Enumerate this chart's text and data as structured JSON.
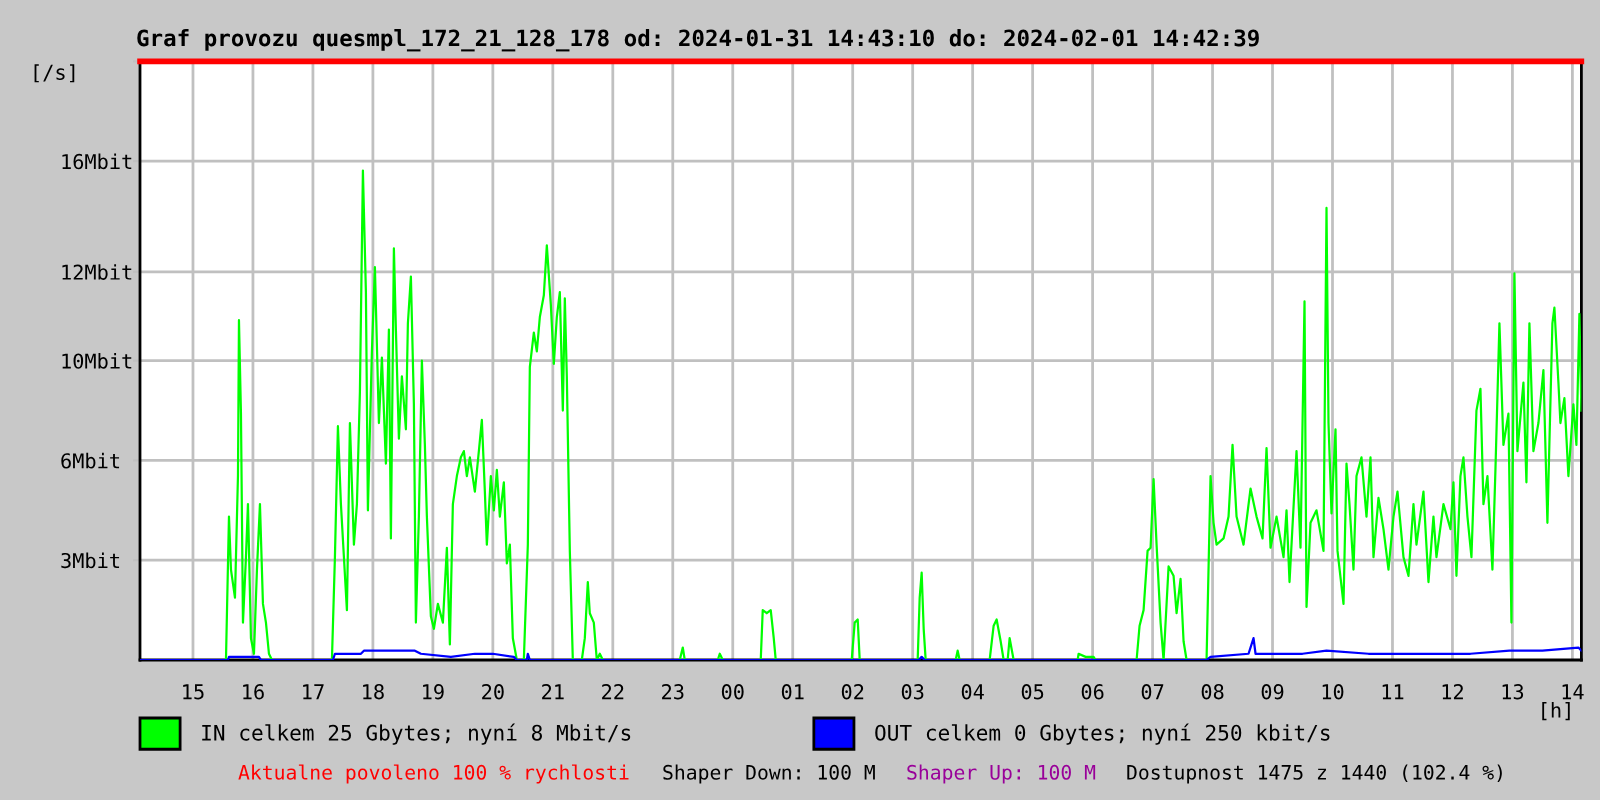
{
  "chart_data": {
    "type": "line",
    "title": "Graf provozu quesmpl_172_21_128_178 od: 2024-01-31 14:43:10 do: 2024-02-01 14:42:39",
    "xlabel": "[h]",
    "ylabel": "[/s]",
    "xlim": [
      "2024-01-31T14:07",
      "2024-02-01T14:09"
    ],
    "xticks": [
      {
        "value": "2024-01-31T15:00",
        "label": "15"
      },
      {
        "value": "2024-01-31T16:00",
        "label": "16"
      },
      {
        "value": "2024-01-31T17:00",
        "label": "17"
      },
      {
        "value": "2024-01-31T18:00",
        "label": "18"
      },
      {
        "value": "2024-01-31T19:00",
        "label": "19"
      },
      {
        "value": "2024-01-31T20:00",
        "label": "20"
      },
      {
        "value": "2024-01-31T21:00",
        "label": "21"
      },
      {
        "value": "2024-01-31T22:00",
        "label": "22"
      },
      {
        "value": "2024-01-31T23:00",
        "label": "23"
      },
      {
        "value": "2024-02-01T00:00",
        "label": "00"
      },
      {
        "value": "2024-02-01T01:00",
        "label": "01"
      },
      {
        "value": "2024-02-01T02:00",
        "label": "02"
      },
      {
        "value": "2024-02-01T03:00",
        "label": "03"
      },
      {
        "value": "2024-02-01T04:00",
        "label": "04"
      },
      {
        "value": "2024-02-01T05:00",
        "label": "05"
      },
      {
        "value": "2024-02-01T06:00",
        "label": "06"
      },
      {
        "value": "2024-02-01T07:00",
        "label": "07"
      },
      {
        "value": "2024-02-01T08:00",
        "label": "08"
      },
      {
        "value": "2024-02-01T09:00",
        "label": "09"
      },
      {
        "value": "2024-02-01T10:00",
        "label": "10"
      },
      {
        "value": "2024-02-01T11:00",
        "label": "11"
      },
      {
        "value": "2024-02-01T12:00",
        "label": "12"
      },
      {
        "value": "2024-02-01T13:00",
        "label": "13"
      },
      {
        "value": "2024-02-01T14:00",
        "label": "14"
      }
    ],
    "ylim": [
      0,
      19.2
    ],
    "yticks": [
      {
        "value": 3.2,
        "label": "3Mbit"
      },
      {
        "value": 6.4,
        "label": "6Mbit"
      },
      {
        "value": 9.6,
        "label": "10Mbit"
      },
      {
        "value": 12.45,
        "label": "12Mbit"
      },
      {
        "value": 16,
        "label": "16Mbit"
      },
      {
        "value": 19.2,
        "label": null
      }
    ],
    "grid": true,
    "legend": "bottom",
    "ref_lines": [
      {
        "axis": "y",
        "value": 19.2,
        "color": "#ff0000"
      }
    ],
    "series": [
      {
        "name": "IN celkem 25 Gbytes; nyní 8 Mbit/s",
        "color": "#00ff00",
        "x": [
          "2024-01-31T14:07",
          "2024-01-31T15:33",
          "2024-01-31T15:36",
          "2024-01-31T15:38",
          "2024-01-31T15:42",
          "2024-01-31T15:45",
          "2024-01-31T15:46",
          "2024-01-31T15:48",
          "2024-01-31T15:50",
          "2024-01-31T15:53",
          "2024-01-31T15:55",
          "2024-01-31T15:58",
          "2024-01-31T16:01",
          "2024-01-31T16:04",
          "2024-01-31T16:07",
          "2024-01-31T16:10",
          "2024-01-31T16:13",
          "2024-01-31T16:16",
          "2024-01-31T16:19",
          "2024-01-31T17:19",
          "2024-01-31T17:22",
          "2024-01-31T17:25",
          "2024-01-31T17:28",
          "2024-01-31T17:31",
          "2024-01-31T17:34",
          "2024-01-31T17:37",
          "2024-01-31T17:41",
          "2024-01-31T17:44",
          "2024-01-31T17:47",
          "2024-01-31T17:50",
          "2024-01-31T17:53",
          "2024-01-31T17:55",
          "2024-01-31T17:59",
          "2024-01-31T18:02",
          "2024-01-31T18:06",
          "2024-01-31T18:09",
          "2024-01-31T18:13",
          "2024-01-31T18:16",
          "2024-01-31T18:18",
          "2024-01-31T18:21",
          "2024-01-31T18:23",
          "2024-01-31T18:26",
          "2024-01-31T18:29",
          "2024-01-31T18:33",
          "2024-01-31T18:35",
          "2024-01-31T18:38",
          "2024-01-31T18:41",
          "2024-01-31T18:43",
          "2024-01-31T18:46",
          "2024-01-31T18:49",
          "2024-01-31T18:52",
          "2024-01-31T18:54",
          "2024-01-31T18:58",
          "2024-01-31T19:01",
          "2024-01-31T19:05",
          "2024-01-31T19:10",
          "2024-01-31T19:14",
          "2024-01-31T19:17",
          "2024-01-31T19:20",
          "2024-01-31T19:24",
          "2024-01-31T19:28",
          "2024-01-31T19:31",
          "2024-01-31T19:34",
          "2024-01-31T19:37",
          "2024-01-31T19:42",
          "2024-01-31T19:46",
          "2024-01-31T19:49",
          "2024-01-31T19:52",
          "2024-01-31T19:54",
          "2024-01-31T19:58",
          "2024-01-31T20:01",
          "2024-01-31T20:04",
          "2024-01-31T20:07",
          "2024-01-31T20:11",
          "2024-01-31T20:14",
          "2024-01-31T20:17",
          "2024-01-31T20:20",
          "2024-01-31T20:24",
          "2024-01-31T20:31",
          "2024-01-31T20:35",
          "2024-01-31T20:37",
          "2024-01-31T20:41",
          "2024-01-31T20:44",
          "2024-01-31T20:47",
          "2024-01-31T20:51",
          "2024-01-31T20:54",
          "2024-01-31T20:58",
          "2024-01-31T21:01",
          "2024-01-31T21:04",
          "2024-01-31T21:07",
          "2024-01-31T21:10",
          "2024-01-31T21:12",
          "2024-01-31T21:14",
          "2024-01-31T21:17",
          "2024-01-31T21:20",
          "2024-01-31T21:29",
          "2024-01-31T21:32",
          "2024-01-31T21:35",
          "2024-01-31T21:37",
          "2024-01-31T21:41",
          "2024-01-31T21:44",
          "2024-01-31T21:47",
          "2024-01-31T21:50",
          "2024-01-31T23:07",
          "2024-01-31T23:10",
          "2024-01-31T23:12",
          "2024-01-31T23:45",
          "2024-01-31T23:47",
          "2024-01-31T23:50",
          "2024-02-01T00:28",
          "2024-02-01T00:30",
          "2024-02-01T00:34",
          "2024-02-01T00:38",
          "2024-02-01T00:41",
          "2024-02-01T00:43",
          "2024-02-01T01:59",
          "2024-02-01T02:02",
          "2024-02-01T02:05",
          "2024-02-01T02:07",
          "2024-02-01T03:05",
          "2024-02-01T03:07",
          "2024-02-01T03:09",
          "2024-02-01T03:11",
          "2024-02-01T03:13",
          "2024-02-01T03:43",
          "2024-02-01T03:45",
          "2024-02-01T03:47",
          "2024-02-01T04:17",
          "2024-02-01T04:21",
          "2024-02-01T04:24",
          "2024-02-01T04:28",
          "2024-02-01T04:31",
          "2024-02-01T04:35",
          "2024-02-01T04:37",
          "2024-02-01T04:41",
          "2024-02-01T05:45",
          "2024-02-01T05:46",
          "2024-02-01T05:53",
          "2024-02-01T06:01",
          "2024-02-01T06:03",
          "2024-02-01T06:44",
          "2024-02-01T06:47",
          "2024-02-01T06:51",
          "2024-02-01T06:55",
          "2024-02-01T06:58",
          "2024-02-01T07:01",
          "2024-02-01T07:04",
          "2024-02-01T07:08",
          "2024-02-01T07:11",
          "2024-02-01T07:16",
          "2024-02-01T07:21",
          "2024-02-01T07:24",
          "2024-02-01T07:28",
          "2024-02-01T07:31",
          "2024-02-01T07:34",
          "2024-02-01T07:54",
          "2024-02-01T07:58",
          "2024-02-01T08:01",
          "2024-02-01T08:04",
          "2024-02-01T08:11",
          "2024-02-01T08:16",
          "2024-02-01T08:20",
          "2024-02-01T08:24",
          "2024-02-01T08:31",
          "2024-02-01T08:38",
          "2024-02-01T08:44",
          "2024-02-01T08:50",
          "2024-02-01T08:54",
          "2024-02-01T08:58",
          "2024-02-01T09:04",
          "2024-02-01T09:11",
          "2024-02-01T09:14",
          "2024-02-01T09:17",
          "2024-02-01T09:24",
          "2024-02-01T09:28",
          "2024-02-01T09:32",
          "2024-02-01T09:34",
          "2024-02-01T09:38",
          "2024-02-01T09:44",
          "2024-02-01T09:51",
          "2024-02-01T09:54",
          "2024-02-01T09:56",
          "2024-02-01T09:59",
          "2024-02-01T10:03",
          "2024-02-01T10:05",
          "2024-02-01T10:11",
          "2024-02-01T10:14",
          "2024-02-01T10:17",
          "2024-02-01T10:21",
          "2024-02-01T10:24",
          "2024-02-01T10:29",
          "2024-02-01T10:34",
          "2024-02-01T10:38",
          "2024-02-01T10:41",
          "2024-02-01T10:46",
          "2024-02-01T10:51",
          "2024-02-01T10:56",
          "2024-02-01T11:01",
          "2024-02-01T11:05",
          "2024-02-01T11:11",
          "2024-02-01T11:16",
          "2024-02-01T11:21",
          "2024-02-01T11:24",
          "2024-02-01T11:31",
          "2024-02-01T11:36",
          "2024-02-01T11:41",
          "2024-02-01T11:44",
          "2024-02-01T11:51",
          "2024-02-01T11:58",
          "2024-02-01T12:01",
          "2024-02-01T12:04",
          "2024-02-01T12:08",
          "2024-02-01T12:11",
          "2024-02-01T12:15",
          "2024-02-01T12:19",
          "2024-02-01T12:24",
          "2024-02-01T12:28",
          "2024-02-01T12:31",
          "2024-02-01T12:35",
          "2024-02-01T12:40",
          "2024-02-01T12:43",
          "2024-02-01T12:47",
          "2024-02-01T12:51",
          "2024-02-01T12:56",
          "2024-02-01T12:59",
          "2024-02-01T13:02",
          "2024-02-01T13:05",
          "2024-02-01T13:11",
          "2024-02-01T13:14",
          "2024-02-01T13:17",
          "2024-02-01T13:21",
          "2024-02-01T13:26",
          "2024-02-01T13:31",
          "2024-02-01T13:35",
          "2024-02-01T13:40",
          "2024-02-01T13:42",
          "2024-02-01T13:46",
          "2024-02-01T13:48",
          "2024-02-01T13:52",
          "2024-02-01T13:56",
          "2024-02-01T14:01",
          "2024-02-01T14:04",
          "2024-02-01T14:07",
          "2024-02-01T14:09"
        ],
        "values": [
          0,
          0,
          4.6,
          2.9,
          2.0,
          5.9,
          10.9,
          7.9,
          1.2,
          3.3,
          5.0,
          0.7,
          0.2,
          2.9,
          5.0,
          1.8,
          1.2,
          0.2,
          0,
          0,
          3.3,
          7.5,
          5.0,
          3.3,
          1.6,
          7.6,
          3.7,
          5.0,
          8.6,
          15.7,
          11.8,
          4.8,
          9.9,
          12.6,
          7.6,
          9.7,
          6.3,
          10.6,
          3.9,
          13.2,
          10.6,
          7.1,
          9.1,
          7.4,
          10.8,
          12.3,
          8.2,
          1.2,
          4.6,
          9.6,
          6.9,
          4.6,
          1.4,
          1.0,
          1.8,
          1.2,
          3.6,
          0.5,
          5.0,
          5.9,
          6.5,
          6.7,
          5.9,
          6.5,
          5.4,
          6.7,
          7.7,
          5.4,
          3.7,
          5.9,
          4.8,
          6.1,
          4.6,
          5.7,
          3.1,
          3.7,
          0.7,
          0,
          0,
          3.7,
          9.4,
          10.5,
          9.9,
          11.0,
          11.7,
          13.3,
          11.4,
          9.5,
          11.0,
          11.8,
          8.0,
          11.6,
          9.1,
          3.5,
          0,
          0,
          0.7,
          2.5,
          1.5,
          1.2,
          0,
          0.2,
          0,
          0,
          0.4,
          0,
          0,
          0.2,
          0,
          0,
          1.6,
          1.5,
          1.6,
          0.7,
          0,
          0,
          1.2,
          1.3,
          0,
          0,
          2.0,
          2.8,
          1.0,
          0,
          0,
          0.3,
          0,
          0,
          1.1,
          1.3,
          0.6,
          0,
          0,
          0.7,
          0,
          0,
          0.2,
          0.1,
          0.1,
          0,
          0,
          1.1,
          1.6,
          3.5,
          3.6,
          5.8,
          3.7,
          1.2,
          0,
          3.0,
          2.7,
          1.5,
          2.6,
          0.6,
          0,
          0,
          5.9,
          4.4,
          3.7,
          3.9,
          4.6,
          6.9,
          4.6,
          3.7,
          5.5,
          4.6,
          3.9,
          6.8,
          3.6,
          4.6,
          3.3,
          4.8,
          2.5,
          6.7,
          3.6,
          11.5,
          1.7,
          4.4,
          4.8,
          3.5,
          14.5,
          7.6,
          4.7,
          7.4,
          3.5,
          1.8,
          6.3,
          5.0,
          2.9,
          5.9,
          6.5,
          4.6,
          6.5,
          3.3,
          5.2,
          4.2,
          2.9,
          4.6,
          5.4,
          3.3,
          2.7,
          5.0,
          3.7,
          5.4,
          2.5,
          4.6,
          3.3,
          5.0,
          4.2,
          5.7,
          2.7,
          5.9,
          6.5,
          4.6,
          3.3,
          8.0,
          8.7,
          5.0,
          5.9,
          2.9,
          6.1,
          10.8,
          6.9,
          7.9,
          1.2,
          12.4,
          6.7,
          8.9,
          5.7,
          10.8,
          6.7,
          7.6,
          9.3,
          4.4,
          10.8,
          11.3,
          8.9,
          7.6,
          8.4,
          5.9,
          8.2,
          6.9,
          11.1,
          8.0
        ]
      },
      {
        "name": "OUT celkem 0 Gbytes; nyní 250 kbit/s",
        "color": "#0000ff",
        "x": [
          "2024-01-31T14:07",
          "2024-01-31T15:35",
          "2024-01-31T15:36",
          "2024-01-31T16:06",
          "2024-01-31T16:08",
          "2024-01-31T17:20",
          "2024-01-31T17:22",
          "2024-01-31T17:48",
          "2024-01-31T17:51",
          "2024-01-31T18:12",
          "2024-01-31T18:30",
          "2024-01-31T18:42",
          "2024-01-31T18:48",
          "2024-01-31T19:18",
          "2024-01-31T19:42",
          "2024-01-31T20:00",
          "2024-01-31T20:21",
          "2024-01-31T20:24",
          "2024-01-31T20:34",
          "2024-01-31T20:35",
          "2024-01-31T20:37",
          "2024-02-01T03:06",
          "2024-02-01T03:09",
          "2024-02-01T03:12",
          "2024-02-01T07:54",
          "2024-02-01T07:58",
          "2024-02-01T08:36",
          "2024-02-01T08:41",
          "2024-02-01T08:43",
          "2024-02-01T09:30",
          "2024-02-01T09:54",
          "2024-02-01T10:36",
          "2024-02-01T11:30",
          "2024-02-01T12:18",
          "2024-02-01T12:57",
          "2024-02-01T13:30",
          "2024-02-01T14:06",
          "2024-02-01T14:09"
        ],
        "values": [
          0,
          0,
          0.1,
          0.1,
          0,
          0,
          0.2,
          0.2,
          0.3,
          0.3,
          0.3,
          0.3,
          0.2,
          0.1,
          0.2,
          0.2,
          0.1,
          0,
          0,
          0.2,
          0,
          0,
          0.1,
          0,
          0,
          0.1,
          0.2,
          0.7,
          0.2,
          0.2,
          0.3,
          0.2,
          0.2,
          0.2,
          0.3,
          0.3,
          0.4,
          0.3
        ]
      }
    ],
    "annotations": [
      "Aktualne povoleno 100 % rychlosti",
      "Shaper Down: 100 M",
      "Shaper Up: 100 M",
      "Dostupnost 1475 z 1440 (102.4 %)"
    ]
  }
}
